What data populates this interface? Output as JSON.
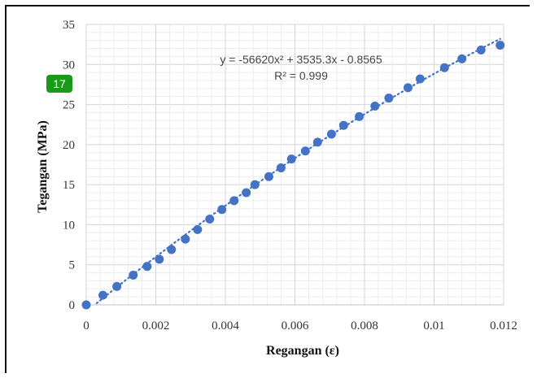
{
  "badge": {
    "text": "17"
  },
  "chart_data": {
    "type": "scatter",
    "title": "",
    "xlabel": "Regangan (ε)",
    "ylabel": "Tegangan (MPa)",
    "xlim": [
      0,
      0.012
    ],
    "ylim": [
      0,
      35
    ],
    "x_ticks": [
      "0",
      "0.002",
      "0.004",
      "0.006",
      "0.008",
      "0.01",
      "0.012"
    ],
    "x_tick_values": [
      0,
      0.002,
      0.004,
      0.006,
      0.008,
      0.01,
      0.012
    ],
    "y_ticks": [
      "0",
      "5",
      "10",
      "15",
      "20",
      "25",
      "30",
      "35"
    ],
    "y_tick_values": [
      0,
      5,
      10,
      15,
      20,
      25,
      30,
      35
    ],
    "grid": true,
    "point_color": "#4472c4",
    "trendline": {
      "type": "polynomial",
      "order": 2,
      "a": -56620,
      "b": 3535.3,
      "c": -0.8565,
      "style": "dotted",
      "equation": "y = -56620x² + 3535.3x - 0.8565",
      "r2_label": "R² = 0.999"
    },
    "series": [
      {
        "x": [
          0,
          0.00048,
          0.00088,
          0.00135,
          0.00175,
          0.0021,
          0.00245,
          0.00285,
          0.0032,
          0.00355,
          0.0039,
          0.00425,
          0.0046,
          0.00485,
          0.00525,
          0.0056,
          0.0059,
          0.0063,
          0.00665,
          0.00705,
          0.0074,
          0.00785,
          0.0083,
          0.0087,
          0.00925,
          0.0096,
          0.0103,
          0.0108,
          0.01135,
          0.0119
        ],
        "y": [
          0,
          1.2,
          2.3,
          3.7,
          4.8,
          5.7,
          6.9,
          8.2,
          9.4,
          10.7,
          11.9,
          13.0,
          14.0,
          15.0,
          16.0,
          17.1,
          18.2,
          19.2,
          20.3,
          21.3,
          22.4,
          23.5,
          24.8,
          25.8,
          27.1,
          28.2,
          29.6,
          30.7,
          31.8,
          32.4
        ]
      }
    ]
  }
}
